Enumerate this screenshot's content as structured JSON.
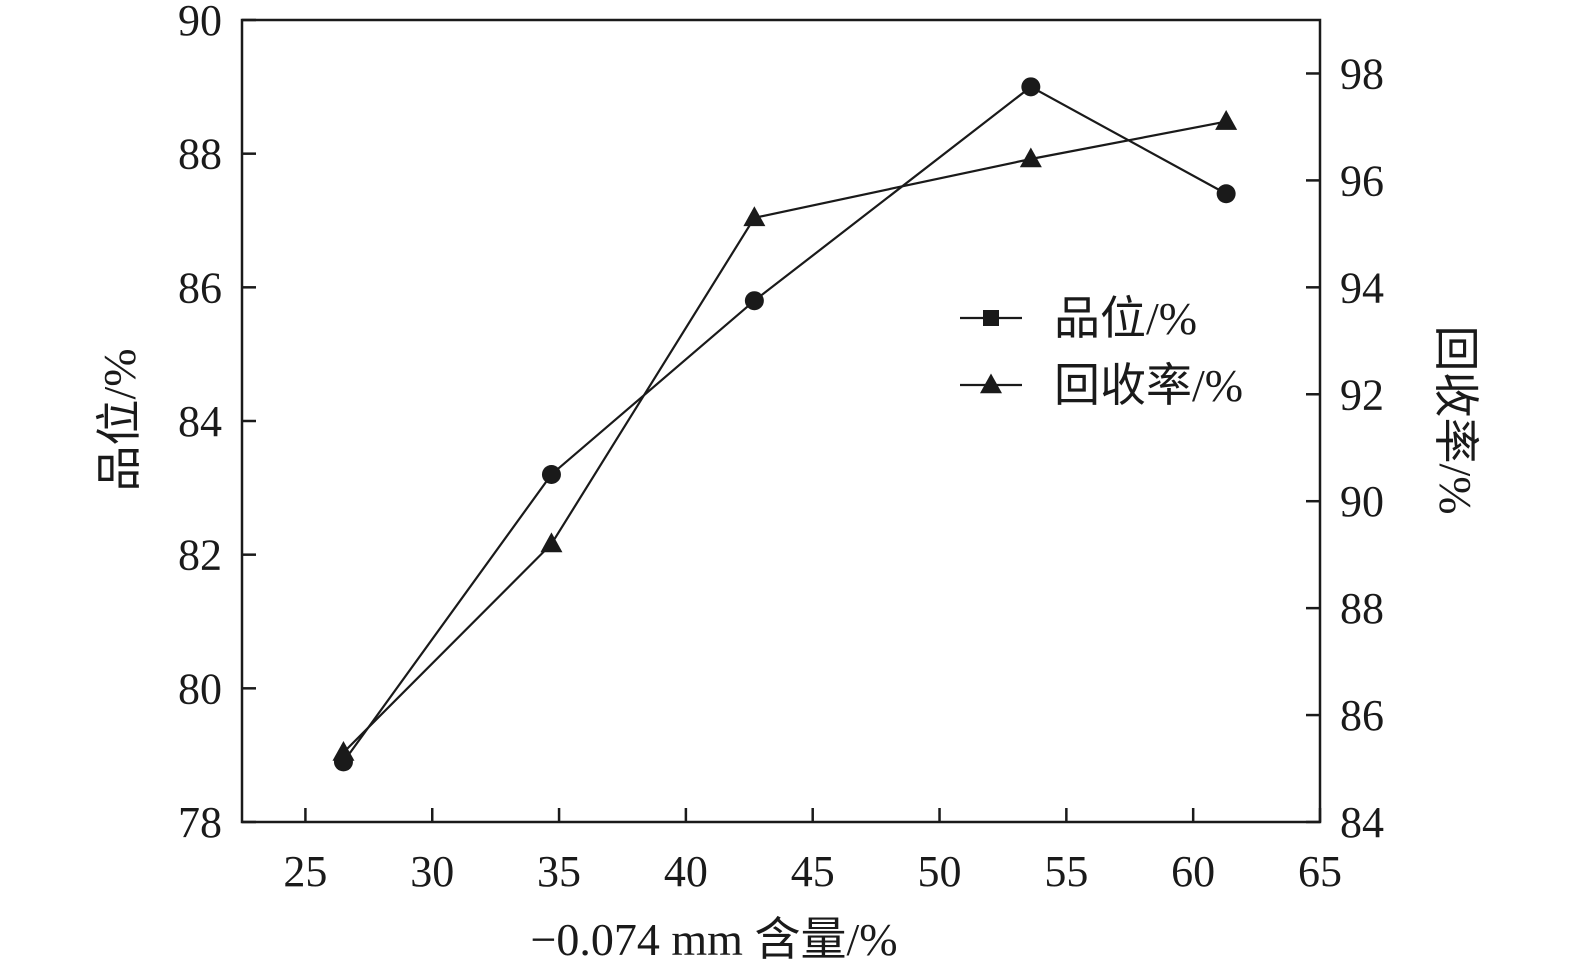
{
  "chart_data": {
    "type": "line",
    "xlabel": "−0.074 mm 含量/%",
    "ylabel_left": "品位/%",
    "ylabel_right": "回收率/%",
    "xlim": [
      22.5,
      65
    ],
    "ylim_left": [
      78,
      90
    ],
    "ylim_right": [
      84,
      99
    ],
    "x_ticks": [
      25,
      30,
      35,
      40,
      45,
      50,
      55,
      60,
      65
    ],
    "y_ticks_left": [
      78,
      80,
      82,
      84,
      86,
      88,
      90
    ],
    "y_ticks_right": [
      84,
      86,
      88,
      90,
      92,
      94,
      96,
      98
    ],
    "grid": false,
    "legend_position": "center-right",
    "series": [
      {
        "name": "品位/%",
        "axis": "left",
        "marker": "circle",
        "legend_marker": "square",
        "x": [
          26.5,
          34.7,
          42.7,
          53.6,
          61.3
        ],
        "y": [
          78.9,
          83.2,
          85.8,
          89.0,
          87.4
        ]
      },
      {
        "name": "回收率/%",
        "axis": "right",
        "marker": "triangle",
        "legend_marker": "triangle",
        "x": [
          26.5,
          34.7,
          42.7,
          53.6,
          61.3
        ],
        "y": [
          85.3,
          89.2,
          95.3,
          96.4,
          97.1
        ]
      }
    ],
    "colors": {
      "line": "#1a1a1a",
      "frame": "#1a1a1a"
    }
  }
}
